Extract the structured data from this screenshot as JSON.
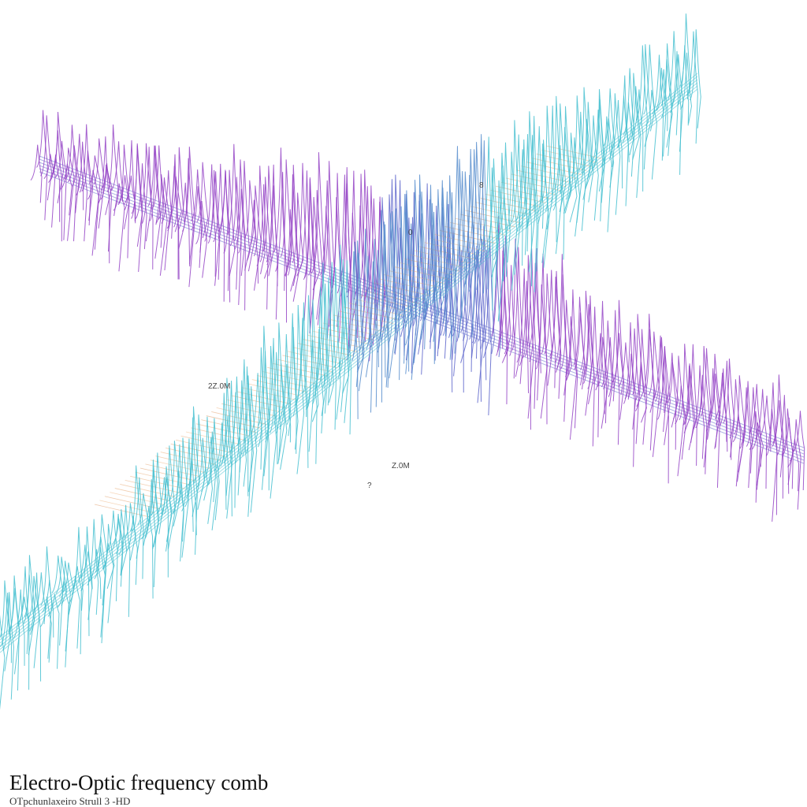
{
  "title": "Electro-Optic frequency comb",
  "caption": "OTpchunlaxeiro Strull 3 -HD",
  "labels": [
    "2Z.0M",
    "Z.0M",
    "?",
    "0",
    "8"
  ]
}
